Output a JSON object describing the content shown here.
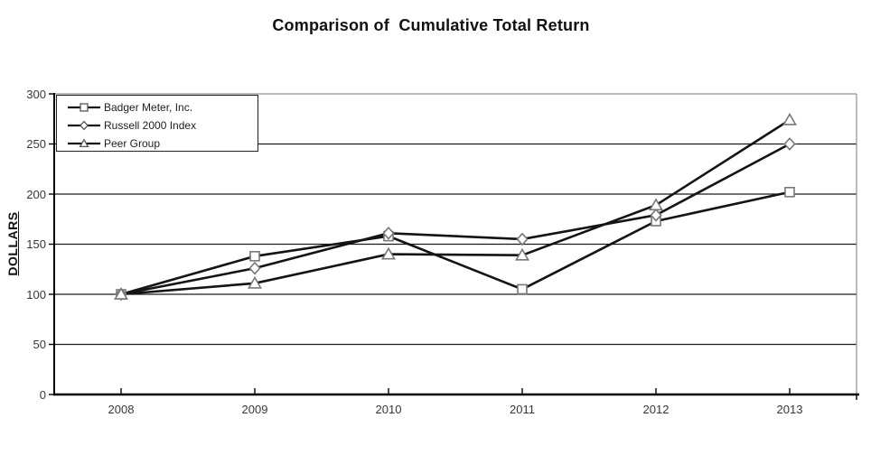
{
  "title": "Comparison of  Cumulative Total Return",
  "y_axis_title": "DOLLARS",
  "chart_data": {
    "type": "line",
    "categories": [
      "2008",
      "2009",
      "2010",
      "2011",
      "2012",
      "2013"
    ],
    "series": [
      {
        "name": "Badger Meter, Inc.",
        "marker": "square",
        "values": [
          100,
          138,
          158,
          105,
          173,
          202
        ]
      },
      {
        "name": "Russell 2000 Index",
        "marker": "diamond",
        "values": [
          100,
          126,
          161,
          155,
          179,
          250
        ]
      },
      {
        "name": "Peer Group",
        "marker": "triangle",
        "values": [
          100,
          111,
          140,
          139,
          189,
          274
        ]
      }
    ],
    "ylabel": "DOLLARS",
    "xlabel": "",
    "ylim": [
      0,
      300
    ],
    "ytick_step": 50,
    "yticks": [
      "0",
      "50",
      "100",
      "150",
      "200",
      "250",
      "300"
    ],
    "grid": true,
    "legend_position": "top-left"
  },
  "colors": {
    "line": "#141414",
    "marker_stroke": "#777777",
    "marker_fill": "#ffffff",
    "gridline": "#1a1a1a",
    "axis": "#000000",
    "plot_border_gray": "#8f8f8f",
    "tick_label": "#36363f",
    "title_text": "#111113"
  }
}
